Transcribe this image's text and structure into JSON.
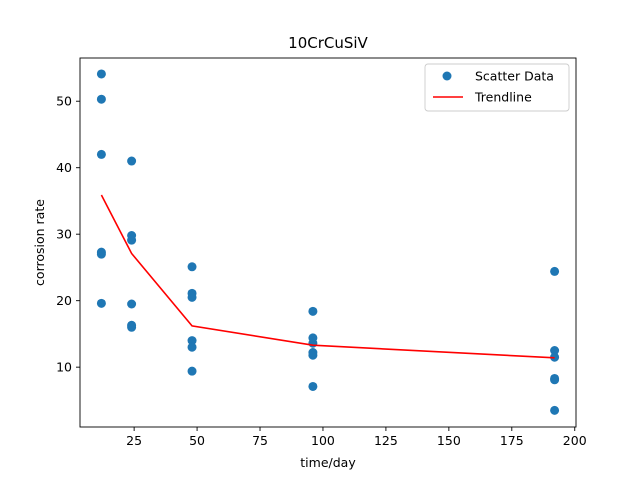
{
  "chart_data": {
    "type": "scatter",
    "title": "10CrCuSiV",
    "xlabel": "time/day",
    "ylabel": "corrosion rate",
    "xlim": [
      3.5,
      200.5
    ],
    "ylim": [
      1,
      56.5
    ],
    "xticks": [
      25,
      50,
      75,
      100,
      125,
      150,
      175,
      200
    ],
    "yticks": [
      10,
      20,
      30,
      40,
      50
    ],
    "grid": false,
    "legend_position": "top-right",
    "colors": {
      "scatter": "#1f77b4",
      "trendline": "#ff0000"
    },
    "series": [
      {
        "name": "Scatter Data",
        "type": "scatter",
        "points": [
          [
            12,
            54.1
          ],
          [
            12,
            50.3
          ],
          [
            12,
            42.0
          ],
          [
            12,
            27.3
          ],
          [
            12,
            27.0
          ],
          [
            12,
            19.6
          ],
          [
            24,
            41.0
          ],
          [
            24,
            29.8
          ],
          [
            24,
            29.1
          ],
          [
            24,
            19.5
          ],
          [
            24,
            16.3
          ],
          [
            24,
            16.0
          ],
          [
            48,
            25.1
          ],
          [
            48,
            21.1
          ],
          [
            48,
            20.5
          ],
          [
            48,
            14.0
          ],
          [
            48,
            13.0
          ],
          [
            48,
            9.4
          ],
          [
            96,
            18.4
          ],
          [
            96,
            14.4
          ],
          [
            96,
            13.6
          ],
          [
            96,
            12.2
          ],
          [
            96,
            11.8
          ],
          [
            96,
            7.1
          ],
          [
            192,
            24.4
          ],
          [
            192,
            12.5
          ],
          [
            192,
            11.5
          ],
          [
            192,
            8.3
          ],
          [
            192,
            8.1
          ],
          [
            192,
            3.5
          ]
        ]
      },
      {
        "name": "Trendline",
        "type": "line",
        "points": [
          [
            12,
            35.9
          ],
          [
            24,
            27.1
          ],
          [
            48,
            16.2
          ],
          [
            96,
            13.3
          ],
          [
            192,
            11.4
          ]
        ]
      }
    ]
  }
}
